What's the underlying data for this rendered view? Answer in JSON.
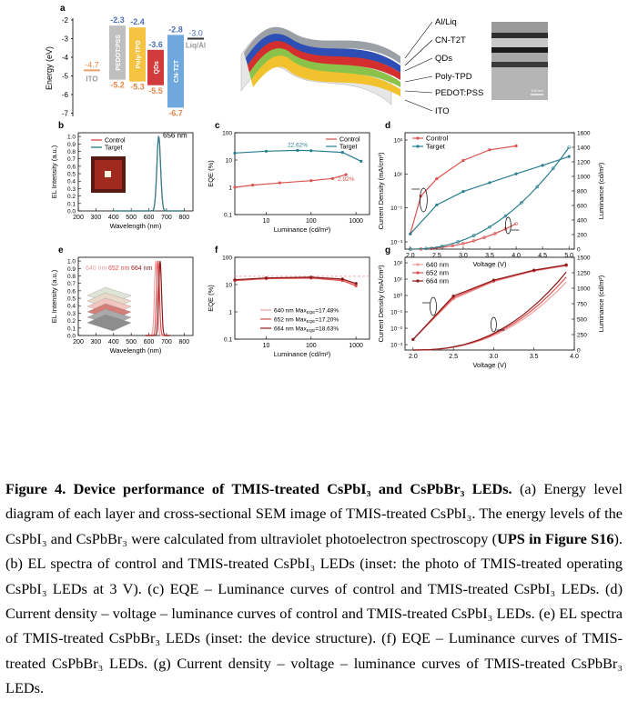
{
  "panels": {
    "a": {
      "label": "a",
      "ylabel": "Energy (eV)",
      "yticks": [
        "-2",
        "-3",
        "-4",
        "-5",
        "-6",
        "-7"
      ],
      "layers": [
        {
          "name": "ITO",
          "top": "",
          "bottom": "-4.7",
          "color": "#d8d8d8",
          "vals": {
            "wf": -4.7
          }
        },
        {
          "name": "PEDOT:PSS",
          "top": "-2.3",
          "bottom": "-5.2",
          "color": "#bfbfbf",
          "vals": {
            "lumo": -2.3,
            "homo": -5.2
          }
        },
        {
          "name": "Poly-TPD",
          "top": "-2.4",
          "bottom": "-5.3",
          "color": "#f5c242",
          "vals": {
            "lumo": -2.4,
            "homo": -5.3
          }
        },
        {
          "name": "QDs",
          "top": "-3.6",
          "bottom": "-5.5",
          "color": "#d23b3b",
          "vals": {
            "lumo": -3.6,
            "homo": -5.5
          }
        },
        {
          "name": "CN-T2T",
          "top": "-2.8",
          "bottom": "-6.7",
          "color": "#6fa8dc",
          "vals": {
            "lumo": -2.8,
            "homo": -6.7
          }
        },
        {
          "name": "Liq/Al",
          "top": "-3.0",
          "bottom": "",
          "color": "#333333",
          "vals": {
            "wf": -3.0
          }
        }
      ],
      "stack_labels": [
        "Al/Liq",
        "CN-T2T",
        "QDs",
        "Poly-TPD",
        "PEDOT:PSS",
        "ITO"
      ],
      "scalebar": "100 nm"
    },
    "b": {
      "label": "b",
      "legend": [
        "Control",
        "Target"
      ],
      "annotation": "656 nm",
      "xlabel": "Wavelength (nm)",
      "ylabel": "EL Intensity (a.u.)",
      "xticks": [
        "200",
        "300",
        "400",
        "500",
        "600",
        "700",
        "800"
      ],
      "yticks": [
        "0.0",
        "0.1",
        "0.2",
        "0.3",
        "0.4",
        "0.5",
        "0.6",
        "0.7",
        "0.8",
        "0.9",
        "1.0"
      ]
    },
    "c": {
      "label": "c",
      "legend": [
        "Control",
        "Target"
      ],
      "annotation_target": "22.62%",
      "annotation_control": "2.92%",
      "xlabel": "Luminance (cd/m²)",
      "ylabel": "EQE (%)",
      "xticks": [
        "10",
        "100",
        "1000"
      ],
      "yticks": [
        "0.1",
        "1",
        "10",
        "100"
      ]
    },
    "d": {
      "label": "d",
      "legend": [
        "Control",
        "Target"
      ],
      "xlabel": "Voltage (V)",
      "ylabel": "Current Density (mA/cm²)",
      "ylabel2": "Luminance (cd/m²)",
      "xticks": [
        "2.0",
        "2.5",
        "3.0",
        "3.5",
        "4.0",
        "4.5",
        "5.0"
      ],
      "yticks": [
        "10⁻³",
        "10⁻¹",
        "10¹",
        "10³"
      ],
      "y2ticks": [
        "0",
        "200",
        "400",
        "600",
        "800",
        "1000",
        "1200",
        "1400",
        "1600"
      ]
    },
    "e": {
      "label": "e",
      "legend_text": [
        "640 nm",
        "652 nm",
        "664 nm"
      ],
      "xlabel": "Wavelength (nm)",
      "ylabel": "EL Intensity (a.u.)",
      "xticks": [
        "200",
        "300",
        "400",
        "500",
        "600",
        "700",
        "800"
      ],
      "yticks": [
        "0.0",
        "0.1",
        "0.2",
        "0.3",
        "0.4",
        "0.5",
        "0.6",
        "0.7",
        "0.8",
        "0.9",
        "1.0"
      ]
    },
    "f": {
      "label": "f",
      "legend": [
        "640 nm Maxₑₐₑ=17.48%",
        "652 nm Maxₑₐₑ=17.20%",
        "664 nm Maxₑₐₑ=18.63%"
      ],
      "legend_names": [
        "640 nm Max",
        "652 nm Max",
        "664 nm Max"
      ],
      "legend_sub": "EQE",
      "legend_vals": [
        "=17.48%",
        "=17.20%",
        "=18.63%"
      ],
      "xlabel": "Luminance (cd/m²)",
      "ylabel": "EQE (%)",
      "xticks": [
        "10",
        "100",
        "1000"
      ],
      "yticks": [
        "0.1",
        "1",
        "10",
        "100"
      ]
    },
    "g": {
      "label": "g",
      "legend": [
        "640 nm",
        "652 nm",
        "664 nm"
      ],
      "xlabel": "Voltage (V)",
      "ylabel": "Current Density (mA/cm²)",
      "ylabel2": "Luminance (cd/m²)",
      "xticks": [
        "2.0",
        "2.5",
        "3.0",
        "3.5",
        "4.0"
      ],
      "yticks": [
        "10⁻³",
        "10⁻²",
        "10⁻¹",
        "10⁰",
        "10¹",
        "10²"
      ],
      "y2ticks": [
        "0",
        "250",
        "500",
        "750",
        "1000",
        "1250",
        "1500"
      ]
    }
  },
  "chart_data": [
    {
      "type": "line",
      "panel": "b",
      "series": [
        {
          "name": "Control",
          "x": [
            600,
            630,
            645,
            656,
            667,
            682,
            710
          ],
          "y": [
            0,
            0.05,
            0.45,
            1.0,
            0.45,
            0.05,
            0
          ]
        },
        {
          "name": "Target",
          "x": [
            600,
            630,
            645,
            656,
            667,
            682,
            710
          ],
          "y": [
            0,
            0.05,
            0.45,
            1.0,
            0.45,
            0.05,
            0
          ]
        }
      ],
      "xlim": [
        200,
        850
      ],
      "ylim": [
        0,
        1.05
      ]
    },
    {
      "type": "line",
      "panel": "c",
      "series": [
        {
          "name": "Control",
          "x": [
            2,
            5,
            20,
            100,
            300,
            600
          ],
          "y": [
            1.0,
            1.2,
            1.45,
            1.75,
            2.1,
            2.92
          ]
        },
        {
          "name": "Target",
          "x": [
            2,
            10,
            50,
            100,
            500,
            1300
          ],
          "y": [
            18,
            21,
            22.62,
            22,
            19,
            9
          ]
        }
      ],
      "xlim": [
        2,
        2000
      ],
      "ylim": [
        0.1,
        100
      ]
    },
    {
      "type": "line",
      "panel": "d",
      "series": [
        {
          "name": "Control",
          "x": [
            2.0,
            2.2,
            2.5,
            3.0,
            3.5,
            4.0
          ],
          "y": [
            0.01,
            0.5,
            3,
            20,
            60,
            90
          ]
        },
        {
          "name": "Target",
          "x": [
            2.0,
            2.5,
            3.0,
            3.5,
            4.0,
            4.5,
            5.0
          ],
          "y": [
            0.01,
            0.2,
            0.8,
            2,
            5,
            12,
            30
          ]
        }
      ],
      "xlim": [
        1.9,
        5.1
      ]
    },
    {
      "type": "line",
      "panel": "e",
      "series": [
        {
          "name": "640 nm",
          "x": [
            600,
            625,
            640,
            655,
            680
          ],
          "y": [
            0,
            0.3,
            1.0,
            0.3,
            0
          ]
        },
        {
          "name": "652 nm",
          "x": [
            612,
            637,
            652,
            667,
            692
          ],
          "y": [
            0,
            0.3,
            1.0,
            0.3,
            0
          ]
        },
        {
          "name": "664 nm",
          "x": [
            624,
            649,
            664,
            679,
            704
          ],
          "y": [
            0,
            0.3,
            1.0,
            0.3,
            0
          ]
        }
      ],
      "xlim": [
        200,
        850
      ],
      "ylim": [
        0,
        1.05
      ]
    },
    {
      "type": "line",
      "panel": "f",
      "series": [
        {
          "name": "640 nm",
          "x": [
            2,
            10,
            100,
            500,
            1000
          ],
          "y": [
            15,
            17,
            17.48,
            15,
            10
          ]
        },
        {
          "name": "652 nm",
          "x": [
            2,
            10,
            100,
            500,
            1000
          ],
          "y": [
            14,
            16.5,
            17.2,
            14,
            9
          ]
        },
        {
          "name": "664 nm",
          "x": [
            2,
            10,
            100,
            500,
            1000
          ],
          "y": [
            15,
            17.5,
            18.63,
            16,
            11
          ]
        }
      ],
      "xlim": [
        2,
        2000
      ],
      "ylim": [
        0.1,
        100
      ]
    },
    {
      "type": "line",
      "panel": "g",
      "series": [
        {
          "name": "640 nm",
          "x": [
            2.0,
            2.5,
            3.0,
            3.5,
            3.9
          ],
          "y": [
            0.005,
            1,
            10,
            40,
            80
          ]
        },
        {
          "name": "652 nm",
          "x": [
            2.0,
            2.5,
            3.0,
            3.5,
            3.9
          ],
          "y": [
            0.005,
            1.2,
            11,
            42,
            85
          ]
        },
        {
          "name": "664 nm",
          "x": [
            2.0,
            2.5,
            3.0,
            3.5,
            3.9
          ],
          "y": [
            0.005,
            1.5,
            12,
            45,
            90
          ]
        }
      ],
      "xlim": [
        1.9,
        4.0
      ]
    }
  ],
  "caption": {
    "title": "Figure 4. Device performance of TMIS-treated CsPbI₃ and CsPbBr₃ LEDs.",
    "part1": " (a) Energy level diagram of each layer and cross-sectional SEM image of TMIS-treated CsPbI₃. The energy levels of the CsPbI₃ and CsPbBr₃ were calculated from ultraviolet photoelectron spectroscopy (",
    "bold_ref": "UPS in Figure S16",
    "part2": "). (b) EL spectra of control and TMIS-treated CsPbI₃ LEDs (inset: the photo of TMIS-treated operating CsPbI₃ LEDs at 3 V). (c) EQE – Luminance curves of control and TMIS-treated CsPbI₃ LEDs. (d) Current density – voltage – luminance curves of control and TMIS-treated CsPbI₃ LEDs. (e) EL spectra of TMIS-treated CsPbBr₃ LEDs (inset: the device structure). (f) EQE – Luminance curves of TMIS-treated CsPbBr₃ LEDs. (g) Current density – voltage – luminance curves of TMIS-treated CsPbBr₃ LEDs."
  },
  "colors": {
    "control": "#d9534f",
    "target": "#2a7f8f",
    "c640": "#f0a0a0",
    "c652": "#e05050",
    "c664": "#8b1a1a"
  }
}
